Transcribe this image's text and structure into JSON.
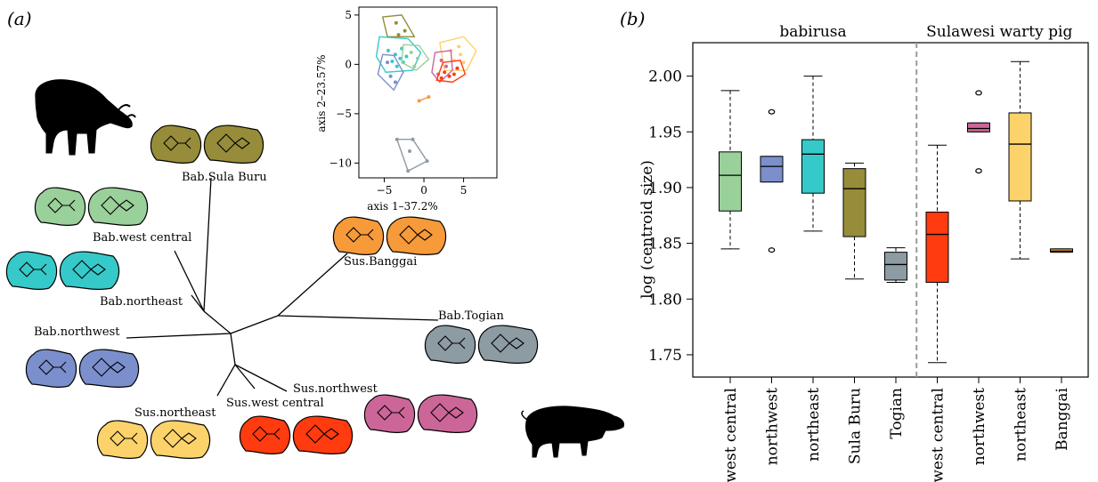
{
  "panels": {
    "a_label": "(a)",
    "b_label": "(b)"
  },
  "tree": {
    "tips": [
      {
        "label": "Bab.Sula Buru",
        "color": "#968c3a"
      },
      {
        "label": "Bab.west central",
        "color": "#9ad09a"
      },
      {
        "label": "Bab.northeast",
        "color": "#36c9c9"
      },
      {
        "label": "Bab.northwest",
        "color": "#7b8fcc"
      },
      {
        "label": "Sus.northeast",
        "color": "#fcd36b"
      },
      {
        "label": "Sus.west central",
        "color": "#ff3b0f"
      },
      {
        "label": "Sus.northwest",
        "color": "#cc6699"
      },
      {
        "label": "Bab.Togian",
        "color": "#8d9ba3"
      },
      {
        "label": "Sus.Banggai",
        "color": "#f79a3a"
      }
    ]
  },
  "pca_inset": {
    "xlabel": "axis  1–37.2%",
    "ylabel": "axis  2–23.57%",
    "xticks": [
      "−5",
      "0",
      "5"
    ],
    "yticks": [
      "−10",
      "−5",
      "0",
      "5"
    ]
  },
  "chart_data": {
    "type": "box",
    "ylabel": "log (centroid size)",
    "ylim": [
      1.73,
      2.03
    ],
    "yticks": [
      "1.75",
      "1.80",
      "1.85",
      "1.90",
      "1.95",
      "2.00"
    ],
    "groups": [
      {
        "label": "babirusa",
        "from": 0,
        "to": 4
      },
      {
        "label": "Sulawesi warty pig",
        "from": 5,
        "to": 8
      }
    ],
    "categories": [
      "west central",
      "northwest",
      "northeast",
      "Sula Buru",
      "Togian",
      "west central",
      "northwest",
      "northeast",
      "Banggai"
    ],
    "boxes": [
      {
        "min": 1.845,
        "q1": 1.879,
        "median": 1.911,
        "q3": 1.932,
        "max": 1.987,
        "outliers": [],
        "color": "#9ad09a"
      },
      {
        "min": 1.905,
        "q1": 1.905,
        "median": 1.919,
        "q3": 1.928,
        "max": 1.928,
        "outliers": [
          1.968,
          1.844
        ],
        "color": "#7b8fcc"
      },
      {
        "min": 1.861,
        "q1": 1.895,
        "median": 1.93,
        "q3": 1.943,
        "max": 2.0,
        "outliers": [],
        "color": "#36c9c9"
      },
      {
        "min": 1.818,
        "q1": 1.856,
        "median": 1.899,
        "q3": 1.917,
        "max": 1.922,
        "outliers": [],
        "color": "#968c3a"
      },
      {
        "min": 1.815,
        "q1": 1.817,
        "median": 1.831,
        "q3": 1.842,
        "max": 1.846,
        "outliers": [],
        "color": "#8d9ba3"
      },
      {
        "min": 1.743,
        "q1": 1.815,
        "median": 1.858,
        "q3": 1.878,
        "max": 1.938,
        "outliers": [],
        "color": "#ff3b0f"
      },
      {
        "min": 1.95,
        "q1": 1.95,
        "median": 1.953,
        "q3": 1.958,
        "max": 1.958,
        "outliers": [
          1.985,
          1.915
        ],
        "color": "#cc6699"
      },
      {
        "min": 1.836,
        "q1": 1.888,
        "median": 1.939,
        "q3": 1.967,
        "max": 2.013,
        "outliers": [],
        "color": "#fcd36b"
      },
      {
        "min": 1.842,
        "q1": 1.842,
        "median": 1.843,
        "q3": 1.845,
        "max": 1.845,
        "outliers": [],
        "color": "#f79a3a"
      }
    ]
  }
}
